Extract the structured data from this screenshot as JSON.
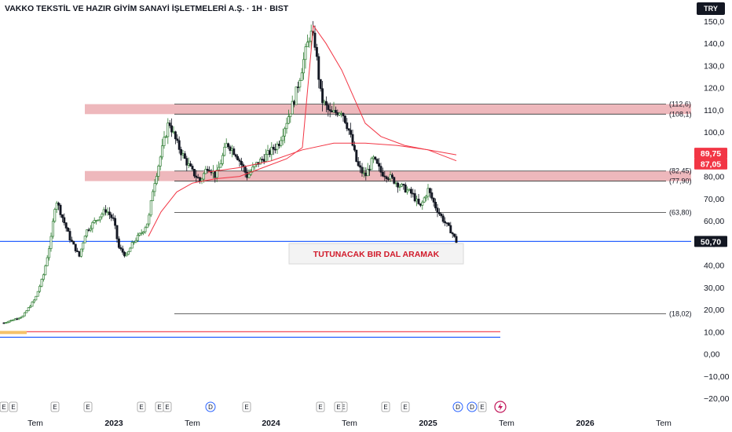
{
  "header": {
    "title": "VAKKO TEKSTİL VE HAZIR GİYİM SANAYİ İŞLETMELERİ A.Ş. · 1H · BIST",
    "currency": "TRY"
  },
  "chart_data": {
    "type": "candlestick",
    "ylim": [
      -20,
      152
    ],
    "y_ticks": [
      "150,0",
      "140,0",
      "130,0",
      "120,0",
      "110,0",
      "100,0",
      "90,00",
      "80,00",
      "70,00",
      "60,00",
      "50,00",
      "40,00",
      "30,00",
      "20,00",
      "10,00",
      "0,00",
      "−10,00",
      "−20,00"
    ],
    "y_tick_values": [
      150,
      140,
      130,
      120,
      110,
      100,
      90,
      80,
      70,
      60,
      50,
      40,
      30,
      20,
      10,
      0,
      -10,
      -20
    ],
    "x_ticks": [
      {
        "label": "Tem",
        "t": 0.5,
        "bold": false
      },
      {
        "label": "2023",
        "t": 1.0,
        "bold": true
      },
      {
        "label": "Tem",
        "t": 1.5,
        "bold": false
      },
      {
        "label": "2024",
        "t": 2.0,
        "bold": true
      },
      {
        "label": "Tem",
        "t": 2.5,
        "bold": false
      },
      {
        "label": "2025",
        "t": 3.0,
        "bold": true
      },
      {
        "label": "Tem",
        "t": 3.5,
        "bold": false
      },
      {
        "label": "2026",
        "t": 4.0,
        "bold": true
      },
      {
        "label": "Tem",
        "t": 4.5,
        "bold": false
      }
    ],
    "price_path": [
      [
        0.3,
        14
      ],
      [
        0.42,
        17
      ],
      [
        0.5,
        25
      ],
      [
        0.55,
        35
      ],
      [
        0.6,
        52
      ],
      [
        0.63,
        70
      ],
      [
        0.68,
        60
      ],
      [
        0.72,
        52
      ],
      [
        0.78,
        44
      ],
      [
        0.82,
        55
      ],
      [
        0.88,
        60
      ],
      [
        0.95,
        65
      ],
      [
        1.0,
        60
      ],
      [
        1.03,
        48
      ],
      [
        1.08,
        44
      ],
      [
        1.12,
        50
      ],
      [
        1.18,
        55
      ],
      [
        1.22,
        60
      ],
      [
        1.25,
        75
      ],
      [
        1.3,
        90
      ],
      [
        1.35,
        105
      ],
      [
        1.4,
        95
      ],
      [
        1.45,
        88
      ],
      [
        1.5,
        82
      ],
      [
        1.55,
        78
      ],
      [
        1.6,
        85
      ],
      [
        1.65,
        80
      ],
      [
        1.72,
        95
      ],
      [
        1.78,
        90
      ],
      [
        1.85,
        80
      ],
      [
        1.9,
        85
      ],
      [
        1.98,
        90
      ],
      [
        2.05,
        95
      ],
      [
        2.1,
        105
      ],
      [
        2.15,
        115
      ],
      [
        2.2,
        130
      ],
      [
        2.25,
        145
      ],
      [
        2.28,
        140
      ],
      [
        2.32,
        115
      ],
      [
        2.38,
        108
      ],
      [
        2.45,
        110
      ],
      [
        2.5,
        100
      ],
      [
        2.55,
        85
      ],
      [
        2.6,
        80
      ],
      [
        2.65,
        88
      ],
      [
        2.7,
        82
      ],
      [
        2.75,
        80
      ],
      [
        2.82,
        76
      ],
      [
        2.9,
        72
      ],
      [
        2.95,
        66
      ],
      [
        3.0,
        74
      ],
      [
        3.05,
        66
      ],
      [
        3.1,
        60
      ],
      [
        3.15,
        55
      ],
      [
        3.18,
        50.7
      ]
    ],
    "series": [
      {
        "name": "",
        "points": [
          [
            1.22,
            53
          ],
          [
            1.3,
            64
          ],
          [
            1.4,
            73
          ],
          [
            1.5,
            77
          ],
          [
            1.65,
            79
          ],
          [
            1.8,
            80
          ],
          [
            1.95,
            84
          ],
          [
            2.1,
            88
          ],
          [
            2.2,
            93
          ],
          [
            2.27,
            148
          ],
          [
            2.35,
            140
          ],
          [
            2.45,
            128
          ],
          [
            2.55,
            112
          ],
          [
            2.6,
            104
          ],
          [
            2.7,
            98
          ],
          [
            2.85,
            94
          ],
          [
            3.0,
            92
          ],
          [
            3.18,
            87.05
          ]
        ]
      },
      {
        "name": "",
        "points": [
          [
            1.6,
            82
          ],
          [
            1.8,
            84
          ],
          [
            2.0,
            87
          ],
          [
            2.2,
            92
          ],
          [
            2.4,
            95
          ],
          [
            2.6,
            95
          ],
          [
            2.8,
            94
          ],
          [
            3.0,
            92
          ],
          [
            3.18,
            89.75
          ]
        ]
      }
    ],
    "levels": [
      {
        "value": 112.6,
        "label": "(112,6)"
      },
      {
        "value": 108.1,
        "label": "(108,1)"
      },
      {
        "value": 82.45,
        "label": "(82,45)"
      },
      {
        "value": 77.9,
        "label": "(77,90)"
      },
      {
        "value": 63.8,
        "label": "(63,80)"
      },
      {
        "value": 18.02,
        "label": "(18,02)"
      }
    ],
    "zones": [
      [
        108.1,
        112.6
      ],
      [
        77.9,
        82.45
      ]
    ],
    "badges": [
      {
        "label": "89,75",
        "value": 89.75,
        "color": "#f23645"
      },
      {
        "label": "87,05",
        "value": 87.05,
        "color": "#f23645"
      },
      {
        "label": "50,70",
        "value": 50.7,
        "color": "#131722"
      }
    ],
    "horizontal_lines": [
      {
        "value": 50.7,
        "color": "#2962ff"
      },
      {
        "value": 10,
        "color": "#f23645"
      },
      {
        "value": 7.5,
        "color": "#2962ff"
      }
    ],
    "annotation": "TUTUNACAK BIR DAL ARAMAK",
    "events": [
      "E",
      "E",
      "E",
      "E",
      "E",
      "D",
      "E",
      "E",
      "E",
      "E",
      "E",
      "D",
      "E",
      "E",
      "E",
      "E",
      "D",
      "E"
    ]
  }
}
